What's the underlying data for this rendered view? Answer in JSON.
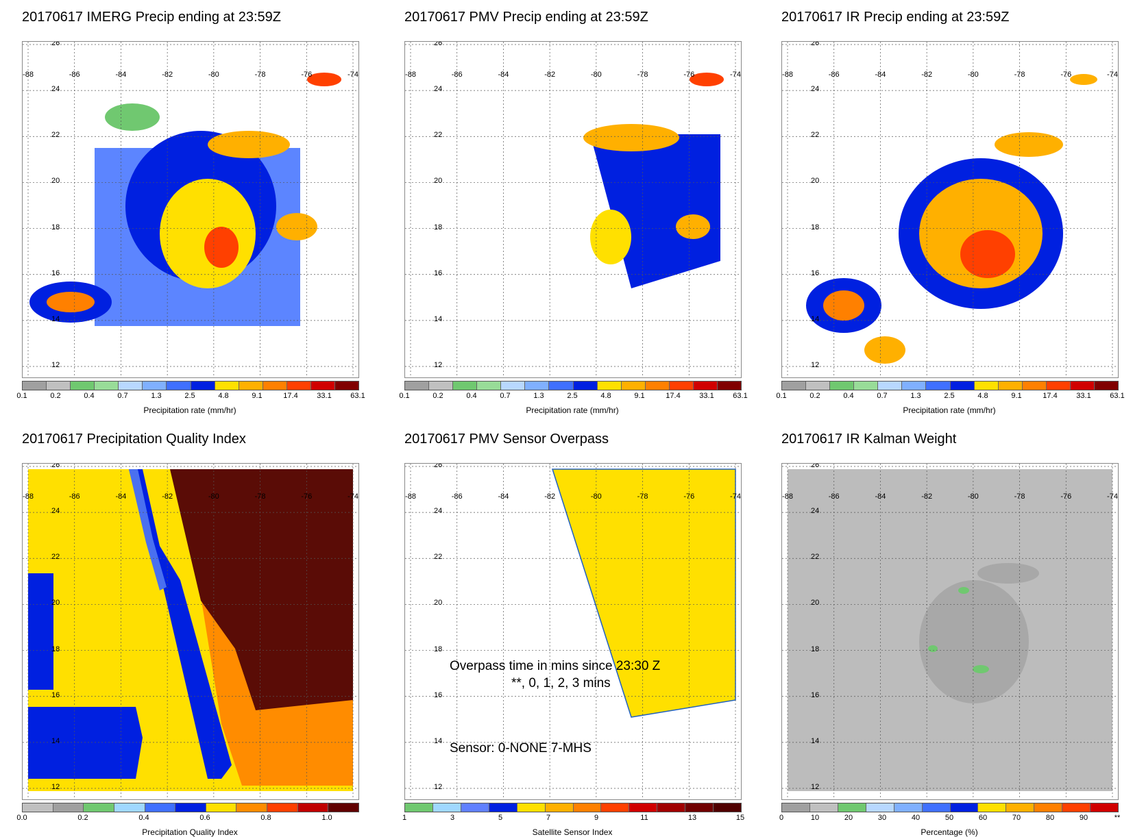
{
  "panels": [
    {
      "title": "20170617 IMERG Precip ending at 23:59Z",
      "colorbar_label": "Precipitation rate (mm/hr)",
      "ticks": [
        "0.1",
        "0.2",
        "0.4",
        "0.7",
        "1.3",
        "2.5",
        "4.8",
        "9.1",
        "17.4",
        "33.1",
        "63.1"
      ]
    },
    {
      "title": "20170617 PMV Precip ending at 23:59Z",
      "colorbar_label": "Precipitation rate (mm/hr)",
      "ticks": [
        "0.1",
        "0.2",
        "0.4",
        "0.7",
        "1.3",
        "2.5",
        "4.8",
        "9.1",
        "17.4",
        "33.1",
        "63.1"
      ]
    },
    {
      "title": "20170617 IR Precip ending at 23:59Z",
      "colorbar_label": "Precipitation rate (mm/hr)",
      "ticks": [
        "0.1",
        "0.2",
        "0.4",
        "0.7",
        "1.3",
        "2.5",
        "4.8",
        "9.1",
        "17.4",
        "33.1",
        "63.1"
      ]
    },
    {
      "title": "20170617 Precipitation Quality Index",
      "colorbar_label": "Precipitation Quality Index",
      "ticks": [
        "0.0",
        "0.2",
        "0.4",
        "0.6",
        "0.8",
        "1.0"
      ]
    },
    {
      "title": "20170617 PMV Sensor Overpass",
      "colorbar_label": "Satellite Sensor Index",
      "ticks": [
        "1",
        "3",
        "5",
        "7",
        "9",
        "11",
        "13",
        "15"
      ],
      "overlay_line1": "Overpass time in mins since 23:30 Z",
      "overlay_line2": "**, 0, 1, 2, 3 mins",
      "overlay_line3": "Sensor:   0-NONE  7-MHS"
    },
    {
      "title": "20170617 IR Kalman Weight",
      "colorbar_label": "Percentage (%)",
      "ticks": [
        "0",
        "10",
        "20",
        "30",
        "40",
        "50",
        "60",
        "70",
        "80",
        "90",
        "**"
      ]
    }
  ],
  "axes": {
    "lon_labels": [
      "-88",
      "-86",
      "-84",
      "-82",
      "-80",
      "-78",
      "-76",
      "-74"
    ],
    "lat_labels": [
      "26",
      "24",
      "22",
      "20",
      "18",
      "16",
      "14",
      "12"
    ]
  },
  "colors": {
    "precip_scale": [
      "#a0a0a0",
      "#c0c0c0",
      "#70c870",
      "#98dc98",
      "#b8d8ff",
      "#80b0ff",
      "#4070ff",
      "#0020e0",
      "#ffe000",
      "#ffb000",
      "#ff8000",
      "#ff4000",
      "#d00000",
      "#800000"
    ],
    "quality_scale": [
      "#c0c0c0",
      "#a0a0a0",
      "#70c870",
      "#a0d8ff",
      "#4070ff",
      "#0020e0",
      "#ffe000",
      "#ff8c00",
      "#ff4000",
      "#c00000",
      "#600000"
    ],
    "sensor_scale": [
      "#70c870",
      "#a0d8ff",
      "#6080ff",
      "#0020e0",
      "#ffe000",
      "#ffb000",
      "#ff8000",
      "#ff4000",
      "#d00000",
      "#a00000",
      "#700000",
      "#500000"
    ],
    "kalman_scale": [
      "#a0a0a0",
      "#c0c0c0",
      "#70c870",
      "#b8d8ff",
      "#80b0ff",
      "#4070ff",
      "#0020e0",
      "#ffe000",
      "#ffb000",
      "#ff8000",
      "#ff4000",
      "#d00000"
    ],
    "yellow": "#ffe000",
    "orange": "#ff8c00",
    "brown": "#5a0c06",
    "blue": "#0020e0",
    "lightblue": "#4a70f0",
    "grey": "#b8b8b8"
  }
}
